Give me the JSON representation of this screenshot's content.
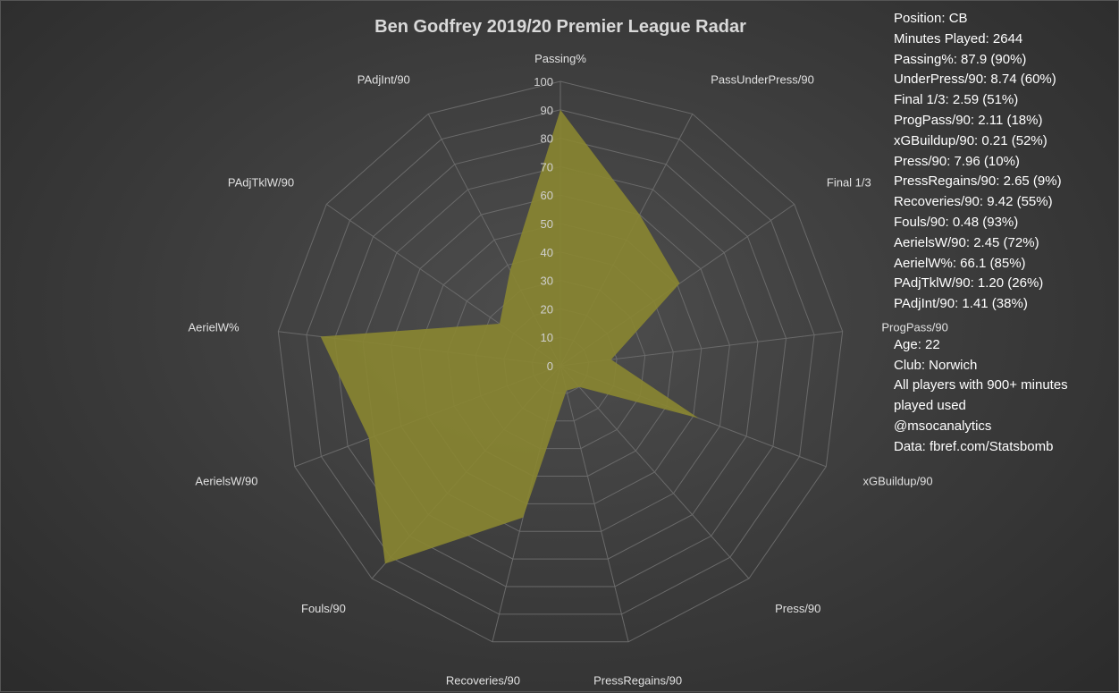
{
  "chart_data": {
    "type": "radar",
    "title": "Ben Godfrey 2019/20 Premier League Radar",
    "axes": [
      "Passing%",
      "PassUnderPress/90",
      "Final 1/3",
      "ProgPass/90",
      "xGBuildup/90",
      "Press/90",
      "PressRegains/90",
      "Recoveries/90",
      "Fouls/90",
      "AerielsW/90",
      "AerielW%",
      "PAdjTklW/90",
      "PAdjInt/90"
    ],
    "values": [
      90,
      60,
      51,
      18,
      52,
      10,
      9,
      55,
      93,
      72,
      85,
      26,
      38
    ],
    "rlim": [
      0,
      100
    ],
    "ticks": [
      "0",
      "10",
      "20",
      "30",
      "40",
      "50",
      "60",
      "70",
      "80",
      "90",
      "100"
    ],
    "fill_color": "#8a8631",
    "grid_color": "#6a6a6a"
  },
  "info": {
    "stats": [
      "Position: CB",
      "Minutes Played: 2644",
      "Passing%: 87.9 (90%)",
      "UnderPress/90: 8.74 (60%)",
      "Final 1/3: 2.59 (51%)",
      "ProgPass/90: 2.11 (18%)",
      "xGBuildup/90: 0.21 (52%)",
      "Press/90: 7.96 (10%)",
      "PressRegains/90: 2.65 (9%)",
      "Recoveries/90: 9.42 (55%)",
      "Fouls/90: 0.48 (93%)",
      "AerielsW/90: 2.45 (72%)",
      "AerielW%: 66.1 (85%)",
      "PAdjTklW/90: 1.20 (26%)",
      "PAdjInt/90: 1.41 (38%)"
    ],
    "age": "Age: 22",
    "club": "Club: Norwich",
    "note_line1": "All players with 900+ minutes",
    "note_line2": "played used",
    "handle": "@msocanalytics",
    "source": "Data: fbref.com/Statsbomb"
  }
}
